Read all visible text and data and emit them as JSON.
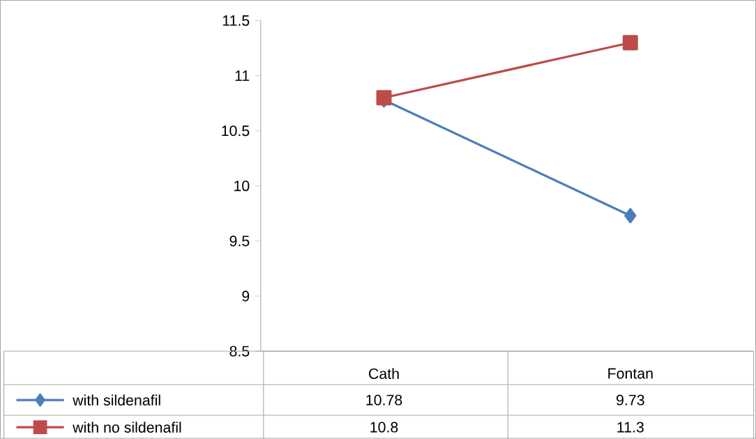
{
  "chart_data": {
    "type": "line",
    "categories": [
      "Cath",
      "Fontan"
    ],
    "series": [
      {
        "name": "with sildenafil",
        "color": "#4a7ebb",
        "marker": "diamond",
        "values": [
          10.78,
          9.73
        ]
      },
      {
        "name": "with no sildenafil",
        "color": "#be4b48",
        "marker": "square",
        "values": [
          10.8,
          11.3
        ]
      }
    ],
    "ylim": [
      8.5,
      11.5
    ],
    "yticks": [
      8.5,
      9,
      9.5,
      10,
      10.5,
      11,
      11.5
    ],
    "data_labels": true,
    "legend": "bottom"
  }
}
